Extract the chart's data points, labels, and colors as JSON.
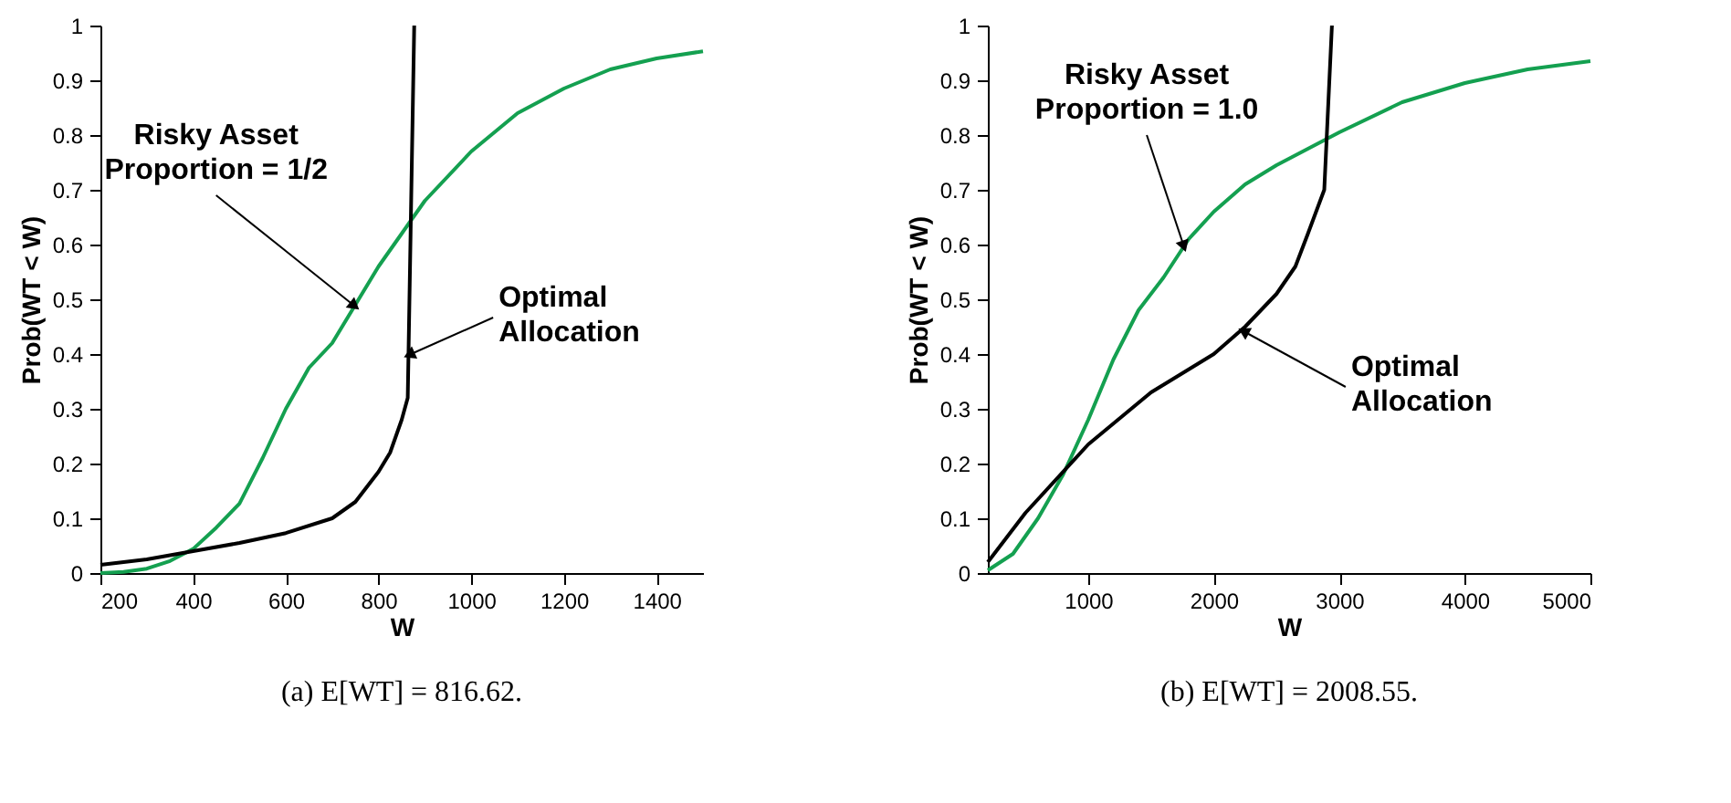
{
  "chart_data": [
    {
      "type": "line",
      "title": "(a) E[WT] = 816.62.",
      "xlabel": "W",
      "ylabel": "Prob(WT < W)",
      "xlim": [
        200,
        1500
      ],
      "ylim": [
        0,
        1
      ],
      "xticks": [
        200,
        400,
        600,
        800,
        1000,
        1200,
        1400
      ],
      "yticks": [
        0,
        0.1,
        0.2,
        0.3,
        0.4,
        0.5,
        0.6,
        0.7,
        0.8,
        0.9,
        1
      ],
      "grid": false,
      "series": [
        {
          "color": "#14a050",
          "x": [
            200,
            250,
            300,
            350,
            400,
            450,
            500,
            550,
            600,
            650,
            700,
            750,
            800,
            850,
            900,
            1000,
            1100,
            1200,
            1300,
            1400,
            1500
          ],
          "values": [
            0,
            0.002,
            0.008,
            0.022,
            0.044,
            0.083,
            0.127,
            0.21,
            0.3,
            0.375,
            0.42,
            0.49,
            0.56,
            0.62,
            0.68,
            0.77,
            0.84,
            0.885,
            0.92,
            0.94,
            0.953
          ]
        },
        {
          "color": "#000000",
          "x": [
            200,
            300,
            400,
            500,
            600,
            700,
            750,
            800,
            825,
            850,
            863,
            877
          ],
          "values": [
            0.015,
            0.025,
            0.04,
            0.055,
            0.073,
            0.1,
            0.13,
            0.185,
            0.22,
            0.28,
            0.32,
            1
          ]
        }
      ],
      "annotations": [
        {
          "text": "Risky Asset\nProportion = 1/2",
          "x": 745,
          "y": 0.49
        },
        {
          "text": "Optimal\nAllocation",
          "x": 870,
          "y": 0.4
        }
      ]
    },
    {
      "type": "line",
      "title": "(b) E[WT] = 2008.55.",
      "xlabel": "W",
      "ylabel": "Prob(WT < W)",
      "xlim": [
        200,
        5000
      ],
      "ylim": [
        0,
        1
      ],
      "xticks": [
        1000,
        2000,
        3000,
        4000,
        5000
      ],
      "yticks": [
        0,
        0.1,
        0.2,
        0.3,
        0.4,
        0.5,
        0.6,
        0.7,
        0.8,
        0.9,
        1
      ],
      "grid": false,
      "series": [
        {
          "color": "#14a050",
          "x": [
            200,
            400,
            600,
            800,
            1000,
            1200,
            1400,
            1600,
            1800,
            2000,
            2250,
            2500,
            2750,
            3000,
            3500,
            4000,
            4500,
            5000
          ],
          "values": [
            0.005,
            0.035,
            0.1,
            0.18,
            0.28,
            0.39,
            0.48,
            0.54,
            0.61,
            0.66,
            0.71,
            0.745,
            0.775,
            0.805,
            0.86,
            0.895,
            0.92,
            0.935
          ]
        },
        {
          "color": "#000000",
          "x": [
            200,
            500,
            1000,
            1500,
            2000,
            2250,
            2500,
            2650,
            2750,
            2880,
            2941
          ],
          "values": [
            0.02,
            0.11,
            0.235,
            0.33,
            0.4,
            0.45,
            0.51,
            0.56,
            0.62,
            0.7,
            1
          ]
        }
      ],
      "annotations": [
        {
          "text": "Risky Asset\nProportion = 1.0",
          "x": 1757,
          "y": 0.6
        },
        {
          "text": "Optimal\nAllocation",
          "x": 2250,
          "y": 0.44
        }
      ]
    }
  ]
}
